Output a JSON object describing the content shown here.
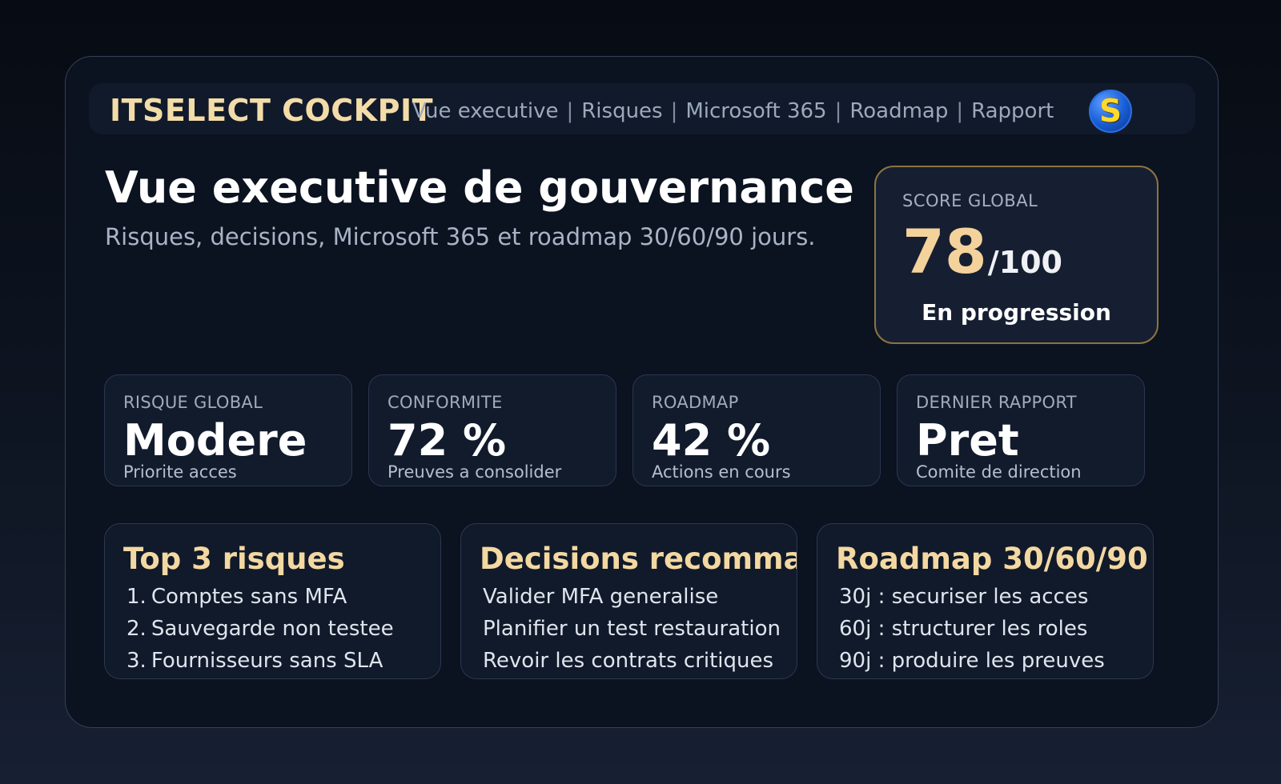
{
  "brand": {
    "name": "ITSELECT COCKPIT",
    "logo_letter": "S"
  },
  "nav": {
    "items": [
      "Vue executive",
      "Risques",
      "Microsoft 365",
      "Roadmap",
      "Rapport"
    ],
    "separator": "|"
  },
  "header": {
    "title": "Vue executive de gouvernance",
    "subtitle": "Risques, decisions, Microsoft 365 et roadmap 30/60/90 jours."
  },
  "score": {
    "label": "SCORE GLOBAL",
    "value": "78",
    "suffix": "/100",
    "status": "En progression"
  },
  "kpis": [
    {
      "label": "RISQUE GLOBAL",
      "value": "Modere",
      "note": "Priorite acces"
    },
    {
      "label": "CONFORMITE",
      "value": "72 %",
      "note": "Preuves a consolider"
    },
    {
      "label": "ROADMAP",
      "value": "42 %",
      "note": "Actions en cours"
    },
    {
      "label": "DERNIER RAPPORT",
      "value": "Pret",
      "note": "Comite de direction"
    }
  ],
  "panels": [
    {
      "title": "Top 3 risques",
      "items": [
        {
          "num": "1.",
          "text": "Comptes sans MFA"
        },
        {
          "num": "2.",
          "text": "Sauvegarde non testee"
        },
        {
          "num": "3.",
          "text": "Fournisseurs sans SLA"
        }
      ]
    },
    {
      "title": "Decisions recommandees",
      "items": [
        {
          "text": "Valider MFA generalise"
        },
        {
          "text": "Planifier un test restauration"
        },
        {
          "text": "Revoir les contrats critiques"
        }
      ]
    },
    {
      "title": "Roadmap 30/60/90",
      "items": [
        {
          "text": "30j : securiser les acces"
        },
        {
          "text": "60j : structurer les roles"
        },
        {
          "text": "90j : produire les preuves"
        }
      ]
    }
  ],
  "colors": {
    "accent_gold": "#f3d8a2",
    "background": "#0b1220",
    "card": "#121b2c",
    "score_border": "#8c7440",
    "logo_blue": "#185fd8",
    "logo_yellow": "#ffd92b"
  }
}
